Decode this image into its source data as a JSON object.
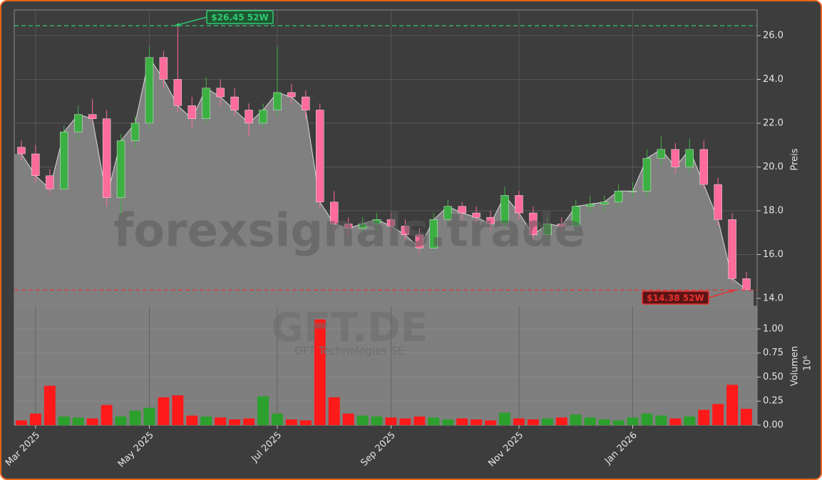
{
  "chart_data": {
    "type": "candlestick",
    "categories": [
      null,
      "Mar 2025",
      null,
      null,
      null,
      null,
      null,
      null,
      null,
      "May 2025",
      null,
      null,
      null,
      null,
      null,
      null,
      null,
      null,
      "Jul 2025",
      null,
      null,
      null,
      null,
      null,
      null,
      null,
      "Sep 2025",
      null,
      null,
      null,
      null,
      null,
      null,
      null,
      null,
      "Nov 2025",
      null,
      null,
      null,
      null,
      null,
      null,
      null,
      "Jan 2026",
      null,
      null,
      null,
      null,
      null,
      null,
      null,
      null
    ],
    "open": [
      20.9,
      20.6,
      19.6,
      19.0,
      21.6,
      22.4,
      22.2,
      18.6,
      21.2,
      22.0,
      25.0,
      24.0,
      22.8,
      22.2,
      23.6,
      23.2,
      22.6,
      22.0,
      22.6,
      23.4,
      23.2,
      22.6,
      18.4,
      17.4,
      17.2,
      17.4,
      17.6,
      17.3,
      16.9,
      16.3,
      17.6,
      18.2,
      17.9,
      17.7,
      17.4,
      18.7,
      17.9,
      16.9,
      17.4,
      17.3,
      18.2,
      18.3,
      18.4,
      18.9,
      18.9,
      20.4,
      20.8,
      20.0,
      20.8,
      19.2,
      17.6,
      14.9
    ],
    "high": [
      21.2,
      21.0,
      19.9,
      21.9,
      22.8,
      23.1,
      22.6,
      21.5,
      22.3,
      25.5,
      25.3,
      26.45,
      23.2,
      24.1,
      24.0,
      23.6,
      22.9,
      22.9,
      25.5,
      23.8,
      23.5,
      22.9,
      18.9,
      17.7,
      17.7,
      17.9,
      17.9,
      17.6,
      17.2,
      17.9,
      18.5,
      18.4,
      18.2,
      18.0,
      19.1,
      18.9,
      18.2,
      17.7,
      17.7,
      18.5,
      18.7,
      18.7,
      19.2,
      19.3,
      20.8,
      21.4,
      21.1,
      21.3,
      21.2,
      19.5,
      17.9,
      15.2
    ],
    "low": [
      20.3,
      19.3,
      18.8,
      18.8,
      21.3,
      22.0,
      18.2,
      17.7,
      20.9,
      21.7,
      23.6,
      22.5,
      21.8,
      22.0,
      22.8,
      22.3,
      21.4,
      21.8,
      22.3,
      22.9,
      22.2,
      18.1,
      17.1,
      16.8,
      16.9,
      17.1,
      17.0,
      16.6,
      16.1,
      16.2,
      17.4,
      17.6,
      17.4,
      17.1,
      17.2,
      17.6,
      16.6,
      16.6,
      17.0,
      17.1,
      17.9,
      18.0,
      18.2,
      18.6,
      18.6,
      20.1,
      19.7,
      19.7,
      19.0,
      17.3,
      14.7,
      14.38
    ],
    "close": [
      20.6,
      19.6,
      19.0,
      21.6,
      22.4,
      22.2,
      18.6,
      21.2,
      22.0,
      25.0,
      24.0,
      22.8,
      22.2,
      23.6,
      23.2,
      22.6,
      22.0,
      22.6,
      23.4,
      23.2,
      22.6,
      18.4,
      17.4,
      17.2,
      17.4,
      17.6,
      17.3,
      16.9,
      16.3,
      17.6,
      18.2,
      17.9,
      17.7,
      17.4,
      18.7,
      17.9,
      16.9,
      17.4,
      17.3,
      18.2,
      18.3,
      18.4,
      18.9,
      18.9,
      20.4,
      20.8,
      20.0,
      20.8,
      19.2,
      17.6,
      14.9,
      14.4
    ],
    "up_color": "#3cb043",
    "down_color": "#ff6b9a",
    "area_color": "#808080",
    "ylim": [
      13.64,
      27.17
    ],
    "yticks": [
      {
        "value": 14,
        "label": "14.0"
      },
      {
        "value": 16,
        "label": "16.0"
      },
      {
        "value": 18,
        "label": "18.0"
      },
      {
        "value": 20,
        "label": "20.0"
      },
      {
        "value": 22,
        "label": "22.0"
      },
      {
        "value": 24,
        "label": "24.0"
      },
      {
        "value": 26,
        "label": "26.0"
      }
    ],
    "ylabel": "Preis",
    "grid": true,
    "annotations": [
      {
        "value": 26.45,
        "label": "$26.45 52W",
        "color": "#2ecc71",
        "index": 11
      },
      {
        "value": 14.38,
        "label": "$14.38 52W",
        "color": "#e8312f",
        "index": 51
      }
    ],
    "volume": {
      "values": [
        0.05,
        0.12,
        0.41,
        0.09,
        0.08,
        0.07,
        0.21,
        0.09,
        0.15,
        0.18,
        0.29,
        0.31,
        0.1,
        0.09,
        0.08,
        0.06,
        0.07,
        0.3,
        0.12,
        0.06,
        0.05,
        1.1,
        0.29,
        0.12,
        0.1,
        0.09,
        0.08,
        0.07,
        0.09,
        0.08,
        0.06,
        0.07,
        0.06,
        0.05,
        0.13,
        0.07,
        0.06,
        0.07,
        0.08,
        0.11,
        0.08,
        0.06,
        0.05,
        0.08,
        0.12,
        0.1,
        0.07,
        0.09,
        0.16,
        0.22,
        0.42,
        0.17
      ],
      "up_color": "#2ca02c",
      "down_color": "#ff1a1a",
      "ylim": [
        0,
        1.237
      ],
      "yticks": [
        {
          "value": 0,
          "label": "0.00"
        },
        {
          "value": 0.25,
          "label": "0.25"
        },
        {
          "value": 0.5,
          "label": "0.50"
        },
        {
          "value": 0.75,
          "label": "0.75"
        },
        {
          "value": 1.0,
          "label": "1.00"
        }
      ],
      "ylabel": "Volumen",
      "scale_label": "10⁶"
    },
    "watermark": {
      "site": "forexsignals.trade",
      "ticker": "GFT.DE",
      "company": "GFT Technologies SE"
    }
  }
}
